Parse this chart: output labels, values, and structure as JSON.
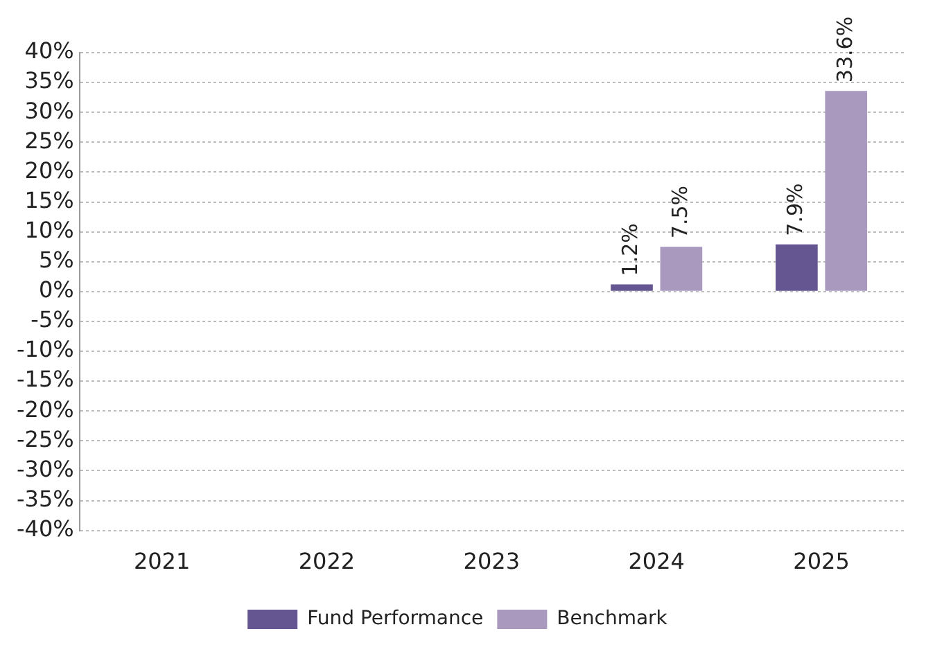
{
  "chart_data": {
    "type": "bar",
    "categories": [
      "2021",
      "2022",
      "2023",
      "2024",
      "2025"
    ],
    "series": [
      {
        "name": "Fund Performance",
        "color": "#655590",
        "values": [
          null,
          null,
          null,
          1.2,
          7.9
        ],
        "value_labels": [
          null,
          null,
          null,
          "1.2%",
          "7.9%"
        ]
      },
      {
        "name": "Benchmark",
        "color": "#a999bf",
        "values": [
          null,
          null,
          null,
          7.5,
          33.6
        ],
        "value_labels": [
          null,
          null,
          null,
          "7.5%",
          "33.6%"
        ]
      }
    ],
    "ylim": [
      -40,
      40
    ],
    "yticks": [
      {
        "value": -40,
        "label": "-40%"
      },
      {
        "value": -35,
        "label": "-35%"
      },
      {
        "value": -30,
        "label": "-30%"
      },
      {
        "value": -25,
        "label": "-25%"
      },
      {
        "value": -20,
        "label": "-20%"
      },
      {
        "value": -15,
        "label": "-15%"
      },
      {
        "value": -10,
        "label": "-10%"
      },
      {
        "value": -5,
        "label": "-5%"
      },
      {
        "value": 0,
        "label": "0%"
      },
      {
        "value": 5,
        "label": "5%"
      },
      {
        "value": 10,
        "label": "10%"
      },
      {
        "value": 15,
        "label": "15%"
      },
      {
        "value": 20,
        "label": "20%"
      },
      {
        "value": 25,
        "label": "25%"
      },
      {
        "value": 30,
        "label": "30%"
      },
      {
        "value": 35,
        "label": "35%"
      },
      {
        "value": 40,
        "label": "40%"
      }
    ],
    "grid": "y",
    "legend": "bottom"
  }
}
